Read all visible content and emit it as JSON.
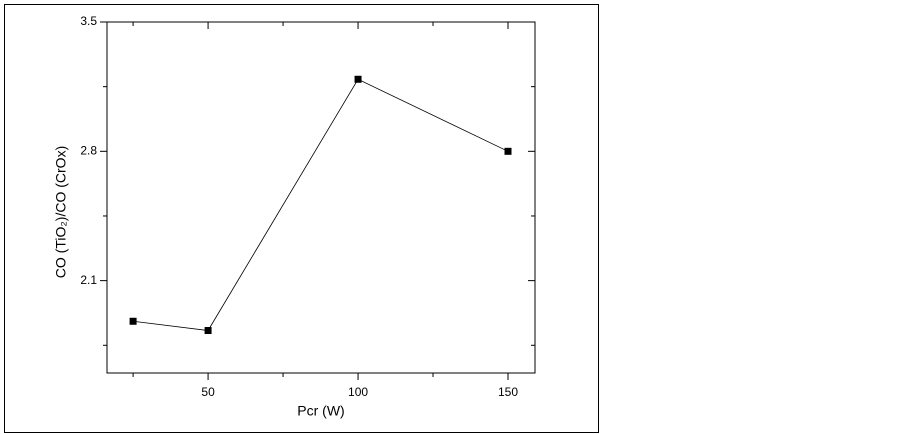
{
  "chart_data": {
    "type": "line",
    "x_label": "Pcr (W)",
    "y_label": "CO (TiO₂)/CO (CrOx)",
    "x": [
      25,
      50,
      100,
      150
    ],
    "series": [
      {
        "color": "#000000",
        "values": [
          1.88,
          1.83,
          3.19,
          2.8
        ]
      }
    ],
    "xlim": [
      16.3,
      159
    ],
    "xticks": [
      50,
      100,
      150
    ],
    "xminor_ticks": [
      25,
      75,
      125
    ],
    "ylim": [
      1.6,
      3.5
    ],
    "yticks": [
      2.1,
      2.8,
      3.5
    ],
    "yminor_ticks": [
      1.75,
      2.45,
      3.15
    ]
  }
}
